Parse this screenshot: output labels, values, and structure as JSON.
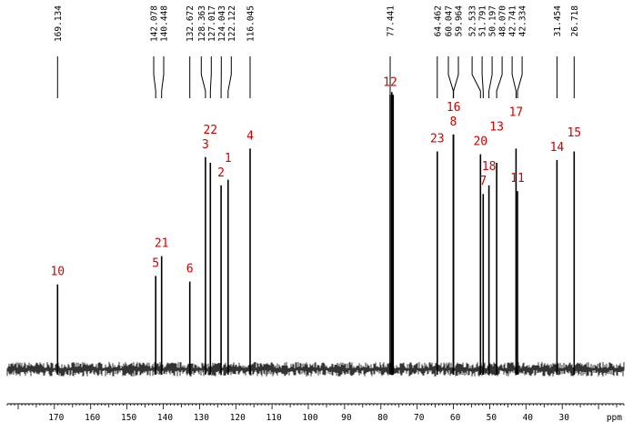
{
  "chart_data": {
    "type": "line",
    "x_unit": "ppm",
    "xlim": [
      183,
      13
    ],
    "x_ticks": [
      170,
      160,
      150,
      140,
      130,
      120,
      110,
      100,
      90,
      80,
      70,
      60,
      50,
      40,
      30
    ],
    "peaks": [
      {
        "ppm": 169.134,
        "label": "169.134",
        "height": 0.3
      },
      {
        "ppm": 142.078,
        "label": "142.078",
        "height": 0.33
      },
      {
        "ppm": 140.448,
        "label": "140.448",
        "height": 0.4
      },
      {
        "ppm": 132.672,
        "label": "132.672",
        "height": 0.31
      },
      {
        "ppm": 128.363,
        "label": "128.363",
        "height": 0.75
      },
      {
        "ppm": 127.017,
        "label": "127.017",
        "height": 0.73
      },
      {
        "ppm": 124.043,
        "label": "124.043",
        "height": 0.65
      },
      {
        "ppm": 122.122,
        "label": "122.122",
        "height": 0.67
      },
      {
        "ppm": 116.045,
        "label": "116.045",
        "height": 0.78
      },
      {
        "ppm": 77.441,
        "label": "77.441",
        "height": 0.97
      },
      {
        "ppm": 77.0,
        "label": "",
        "height": 0.98
      },
      {
        "ppm": 76.6,
        "label": "",
        "height": 0.97
      },
      {
        "ppm": 64.462,
        "label": "64.462",
        "height": 0.77
      },
      {
        "ppm": 60.047,
        "label": "60.047",
        "height": 0.83
      },
      {
        "ppm": 59.964,
        "label": "59.964",
        "height": 0.83
      },
      {
        "ppm": 52.533,
        "label": "52.533",
        "height": 0.76
      },
      {
        "ppm": 51.791,
        "label": "51.791",
        "height": 0.62
      },
      {
        "ppm": 50.197,
        "label": "50.197",
        "height": 0.65
      },
      {
        "ppm": 48.07,
        "label": "48.070",
        "height": 0.73
      },
      {
        "ppm": 42.741,
        "label": "42.741",
        "height": 0.78
      },
      {
        "ppm": 42.334,
        "label": "42.334",
        "height": 0.63
      },
      {
        "ppm": 31.454,
        "label": "31.454",
        "height": 0.74
      },
      {
        "ppm": 26.718,
        "label": "26.718",
        "height": 0.77
      }
    ],
    "assignments": [
      {
        "text": "10",
        "ppm": 169.134
      },
      {
        "text": "5",
        "ppm": 142.078
      },
      {
        "text": "21",
        "ppm": 140.448
      },
      {
        "text": "6",
        "ppm": 132.672
      },
      {
        "text": "3",
        "ppm": 128.363
      },
      {
        "text": "22",
        "ppm": 127.017
      },
      {
        "text": "2",
        "ppm": 124.043
      },
      {
        "text": "1",
        "ppm": 122.122
      },
      {
        "text": "4",
        "ppm": 116.045
      },
      {
        "text": "12",
        "ppm": 77.441
      },
      {
        "text": "23",
        "ppm": 64.462
      },
      {
        "text": "8",
        "ppm": 60.047
      },
      {
        "text": "16",
        "ppm": 59.964
      },
      {
        "text": "20",
        "ppm": 52.533
      },
      {
        "text": "7",
        "ppm": 51.791
      },
      {
        "text": "18",
        "ppm": 50.197
      },
      {
        "text": "13",
        "ppm": 48.07
      },
      {
        "text": "17",
        "ppm": 42.741
      },
      {
        "text": "11",
        "ppm": 42.334
      },
      {
        "text": "14",
        "ppm": 31.454
      },
      {
        "text": "15",
        "ppm": 26.718
      }
    ],
    "colors": {
      "spectrum": "#000000",
      "assignment_labels": "#d40000"
    }
  }
}
